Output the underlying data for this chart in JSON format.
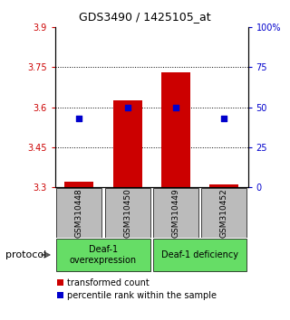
{
  "title": "GDS3490 / 1425105_at",
  "samples": [
    "GSM310448",
    "GSM310450",
    "GSM310449",
    "GSM310452"
  ],
  "transformed_counts": [
    3.32,
    3.625,
    3.73,
    3.31
  ],
  "percentile_ranks": [
    43,
    50,
    50,
    43
  ],
  "ylim_left": [
    3.3,
    3.9
  ],
  "ylim_right": [
    0,
    100
  ],
  "yticks_left": [
    3.3,
    3.45,
    3.6,
    3.75,
    3.9
  ],
  "yticks_right": [
    0,
    25,
    50,
    75,
    100
  ],
  "ytick_labels_left": [
    "3.3",
    "3.45",
    "3.6",
    "3.75",
    "3.9"
  ],
  "ytick_labels_right": [
    "0",
    "25",
    "50",
    "75",
    "100%"
  ],
  "bar_color": "#cc0000",
  "dot_color": "#0000cc",
  "bar_bottom": 3.3,
  "bar_width": 0.6,
  "groups": [
    {
      "label": "Deaf-1\noverexpression",
      "color": "#66dd66"
    },
    {
      "label": "Deaf-1 deficiency",
      "color": "#66dd66"
    }
  ],
  "protocol_label": "protocol",
  "legend_bar_label": "transformed count",
  "legend_dot_label": "percentile rank within the sample",
  "left_tick_color": "#cc0000",
  "right_tick_color": "#0000cc",
  "bg_color": "#ffffff",
  "sample_bg_color": "#bbbbbb",
  "title_fontsize": 9,
  "tick_fontsize": 7,
  "sample_fontsize": 6.5,
  "group_fontsize": 7,
  "legend_fontsize": 7,
  "protocol_fontsize": 8
}
